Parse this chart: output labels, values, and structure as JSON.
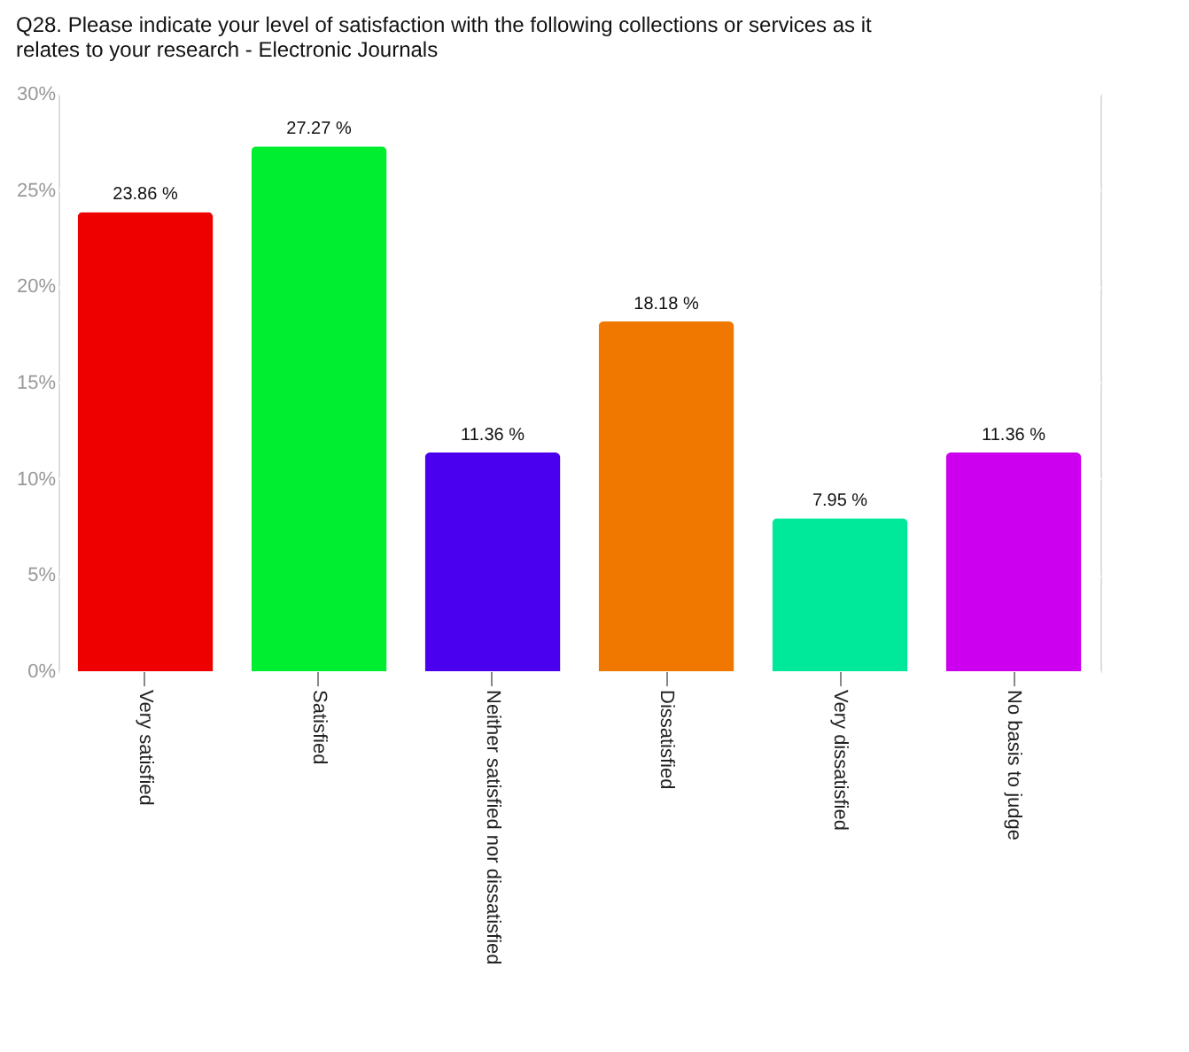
{
  "chart_data": {
    "type": "bar",
    "title": "Q28. Please indicate your level of satisfaction with the following collections or services as it relates to your research -  Electronic Journals",
    "categories": [
      "Very satisfied",
      "Satisfied",
      "Neither satisfied nor dissatisfied",
      "Dissatisfied",
      "Very dissatisfied",
      "No basis to judge"
    ],
    "values": [
      23.86,
      27.27,
      11.36,
      18.18,
      7.95,
      11.36
    ],
    "colors": [
      "#ee0000",
      "#00ee30",
      "#4a00ee",
      "#f07800",
      "#00e89a",
      "#cc00ee"
    ],
    "value_labels": [
      "23.86 %",
      "27.27 %",
      "11.36 %",
      "18.18 %",
      "7.95 %",
      "11.36 %"
    ],
    "ylim": [
      0,
      30
    ],
    "yticks": [
      {
        "value": 0,
        "label": "0%"
      },
      {
        "value": 5,
        "label": "5%"
      },
      {
        "value": 10,
        "label": "10%"
      },
      {
        "value": 15,
        "label": "15%"
      },
      {
        "value": 20,
        "label": "20%"
      },
      {
        "value": 25,
        "label": "25%"
      },
      {
        "value": 30,
        "label": "30%"
      }
    ],
    "grid": "y"
  }
}
